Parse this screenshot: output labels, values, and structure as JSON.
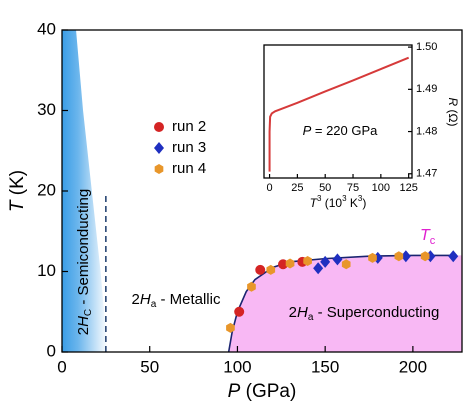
{
  "chart_data": [
    {
      "type": "scatter",
      "xlabel": [
        "P",
        " (GPa)"
      ],
      "ylabel": [
        "T",
        " (K)"
      ],
      "xlim": [
        0,
        228
      ],
      "ylim": [
        0,
        40
      ],
      "xticks": [
        0,
        50,
        100,
        150,
        200
      ],
      "yticks": [
        0,
        10,
        20,
        30,
        40
      ],
      "series": [
        {
          "name": "run 2",
          "color": "#d42424",
          "marker": "circle",
          "x": [
            101,
            113,
            126,
            137
          ],
          "values": [
            5,
            10.2,
            10.9,
            11.2
          ]
        },
        {
          "name": "run 3",
          "color": "#1f2fc0",
          "marker": "diamond",
          "x": [
            146,
            150,
            157,
            180,
            196,
            210,
            223
          ],
          "values": [
            10.4,
            11.2,
            11.5,
            11.7,
            11.9,
            11.9,
            11.9
          ]
        },
        {
          "name": "run 4",
          "color": "#e8962a",
          "marker": "hexagon",
          "x": [
            96,
            108,
            119,
            130,
            140,
            162,
            177,
            192,
            207
          ],
          "values": [
            3,
            8.1,
            10.2,
            11,
            11.3,
            10.9,
            11.7,
            11.9,
            11.9
          ]
        }
      ],
      "tc_line": {
        "color": "#1a2470",
        "fill": "#f8b8f4",
        "x": [
          95,
          97,
          100,
          105,
          110,
          120,
          130,
          150,
          175,
          200,
          225
        ],
        "values": [
          0,
          2.5,
          5,
          7.5,
          9,
          10.5,
          11.2,
          11.6,
          11.9,
          12,
          12
        ]
      },
      "semiconducting_edge": {
        "color": "#3a9de6",
        "x": [
          26,
          22,
          17,
          12,
          8
        ],
        "values": [
          0,
          10,
          20,
          30,
          40
        ]
      },
      "dashed_line": {
        "x": 25,
        "values": [
          0,
          19.5
        ]
      },
      "annotations": [
        [
          "2",
          "H",
          "C",
          " - Semiconducting"
        ],
        [
          "2",
          "H",
          "a",
          " - Metallic"
        ],
        [
          "2",
          "H",
          "a",
          " - Superconducting"
        ],
        [
          "T",
          "c"
        ]
      ]
    },
    {
      "type": "line",
      "xlabel": [
        "T",
        "3",
        " (10",
        "3",
        " K",
        "3",
        ")"
      ],
      "ylabel": [
        "R",
        " (Ω)"
      ],
      "xlim": [
        -5,
        128
      ],
      "ylim": [
        1.469,
        1.5005
      ],
      "xticks": [
        0,
        25,
        50,
        75,
        100,
        125
      ],
      "yticks": [
        1.47,
        1.48,
        1.49,
        {
          "value": 1.5,
          "label": "1.50"
        }
      ],
      "series": [
        {
          "color": "#d63a3a",
          "x": [
            0,
            0,
            0.5,
            2,
            5,
            10,
            25,
            50,
            75,
            100,
            125
          ],
          "values": [
            1.4705,
            1.48,
            1.4835,
            1.4843,
            1.4848,
            1.4853,
            1.4868,
            1.4895,
            1.4921,
            1.4948,
            1.4975
          ]
        }
      ],
      "annotations": [
        [
          "P",
          " = 220 GPa"
        ]
      ]
    }
  ]
}
